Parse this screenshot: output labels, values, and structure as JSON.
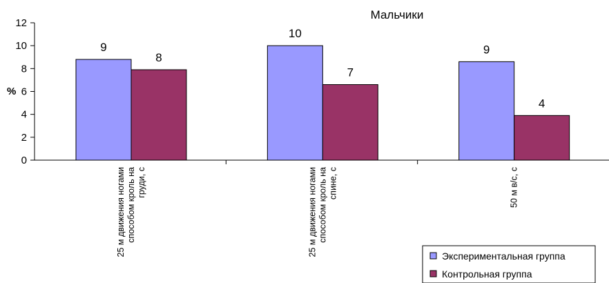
{
  "chart_data": {
    "type": "bar",
    "title": "Мальчики",
    "ylabel": "%",
    "xlabel": "",
    "ylim": [
      0,
      12
    ],
    "yticks": [
      0,
      2,
      4,
      6,
      8,
      10,
      12
    ],
    "grid": false,
    "legend_position": "bottom-right",
    "categories": [
      [
        "25 м движения  ногами",
        "способом  кроль на",
        "груди, с"
      ],
      [
        "25 м движения  ногами",
        "способом  кроль на",
        "спине, с"
      ],
      [
        "50 м в/с, с"
      ]
    ],
    "series": [
      {
        "name": "Экспериментальная  группа",
        "color": "#9999ff",
        "values": [
          8.8,
          10,
          8.6
        ],
        "labels": [
          "9",
          "10",
          "9"
        ]
      },
      {
        "name": "Контрольная  группа",
        "color": "#993366",
        "values": [
          7.9,
          6.6,
          3.9
        ],
        "labels": [
          "8",
          "7",
          "4"
        ]
      }
    ]
  }
}
